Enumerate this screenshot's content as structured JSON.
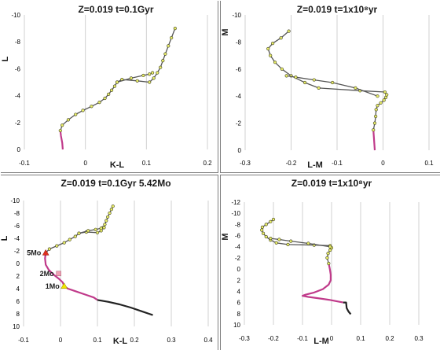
{
  "chart_data": [
    {
      "type": "line",
      "title": "Z=0.019  t=0.1Gyr",
      "xlabel": "K-L",
      "ylabel": "L",
      "xlim": [
        -0.1,
        0.2
      ],
      "ylim": [
        0,
        -10
      ],
      "xticks": [
        "-0.1",
        "0",
        "0.1",
        "0.2"
      ],
      "yticks": [
        "0",
        "-2",
        "-4",
        "-6",
        "-8",
        "-10"
      ],
      "grid": "vertical",
      "series": [
        {
          "color": "#c03a8a",
          "markers": false,
          "points": [
            [
              -0.037,
              0.0
            ],
            [
              -0.038,
              -0.5
            ],
            [
              -0.04,
              -1.0
            ],
            [
              -0.041,
              -1.4
            ]
          ]
        },
        {
          "color": "#555555",
          "markers": true,
          "points": [
            [
              -0.041,
              -1.4
            ],
            [
              -0.038,
              -1.8
            ],
            [
              -0.028,
              -2.2
            ],
            [
              -0.016,
              -2.6
            ],
            [
              -0.004,
              -2.9
            ],
            [
              0.01,
              -3.2
            ],
            [
              0.023,
              -3.5
            ],
            [
              0.032,
              -3.8
            ],
            [
              0.038,
              -4.1
            ],
            [
              0.043,
              -4.4
            ],
            [
              0.048,
              -4.7
            ],
            [
              0.052,
              -5.0
            ],
            [
              0.06,
              -5.2
            ],
            [
              0.085,
              -5.1
            ],
            [
              0.105,
              -5.0
            ],
            [
              0.112,
              -5.3
            ],
            [
              0.118,
              -5.7
            ],
            [
              0.123,
              -6.1
            ],
            [
              0.127,
              -6.6
            ],
            [
              0.131,
              -7.1
            ],
            [
              0.136,
              -7.7
            ],
            [
              0.141,
              -8.3
            ],
            [
              0.147,
              -9.0
            ]
          ]
        },
        {
          "color": "#555555",
          "markers": true,
          "points": [
            [
              0.052,
              -5.0
            ],
            [
              0.075,
              -5.3
            ],
            [
              0.095,
              -5.5
            ],
            [
              0.105,
              -5.6
            ],
            [
              0.11,
              -5.7
            ]
          ]
        }
      ]
    },
    {
      "type": "line",
      "title": "Z=0.019   t=1x10⁸yr",
      "xlabel": "L-M",
      "ylabel": "M",
      "xlim": [
        -0.3,
        0.1
      ],
      "ylim": [
        0,
        -10
      ],
      "xticks": [
        "-0.3",
        "-0.2",
        "-0.1",
        "0",
        "0.1"
      ],
      "yticks": [
        "0",
        "-2",
        "-4",
        "-6",
        "-8",
        "-10"
      ],
      "grid": "vertical",
      "series": [
        {
          "color": "#c03a8a",
          "markers": false,
          "points": [
            [
              -0.018,
              0.0
            ],
            [
              -0.019,
              -0.5
            ],
            [
              -0.02,
              -1.0
            ],
            [
              -0.021,
              -1.5
            ]
          ]
        },
        {
          "color": "#555555",
          "markers": true,
          "points": [
            [
              -0.021,
              -1.5
            ],
            [
              -0.018,
              -2.0
            ],
            [
              -0.016,
              -2.5
            ],
            [
              -0.015,
              -3.0
            ],
            [
              -0.012,
              -3.3
            ],
            [
              -0.005,
              -3.5
            ],
            [
              0.002,
              -3.7
            ],
            [
              0.006,
              -3.9
            ],
            [
              0.008,
              -4.1
            ],
            [
              0.004,
              -4.3
            ],
            [
              -0.05,
              -4.4
            ],
            [
              -0.14,
              -4.6
            ],
            [
              -0.17,
              -5.0
            ],
            [
              -0.2,
              -5.5
            ],
            [
              -0.22,
              -6.0
            ],
            [
              -0.235,
              -6.5
            ],
            [
              -0.245,
              -7.0
            ],
            [
              -0.25,
              -7.5
            ],
            [
              -0.24,
              -7.9
            ],
            [
              -0.222,
              -8.3
            ],
            [
              -0.205,
              -8.8
            ]
          ]
        },
        {
          "color": "#555555",
          "markers": true,
          "points": [
            [
              -0.012,
              -4.0
            ],
            [
              -0.06,
              -4.6
            ],
            [
              -0.11,
              -5.0
            ],
            [
              -0.15,
              -5.2
            ],
            [
              -0.19,
              -5.4
            ],
            [
              -0.21,
              -5.5
            ]
          ]
        }
      ]
    },
    {
      "type": "line",
      "title": "Z=0.019  t=0.1Gyr  5.42Mo",
      "xlabel": "K-L",
      "ylabel": "L",
      "xlim": [
        -0.1,
        0.4
      ],
      "ylim": [
        10,
        -10
      ],
      "xticks": [
        "-0.1",
        "0",
        "0.1",
        "0.2",
        "0.3",
        "0.4"
      ],
      "yticks": [
        "-10",
        "-8",
        "-6",
        "-4",
        "-2",
        "0",
        "2",
        "4",
        "6",
        "8",
        "10"
      ],
      "grid": "vertical",
      "annotations": [
        {
          "text": "5Mo",
          "x": -0.04,
          "y": -1.7,
          "color": "#e0301e"
        },
        {
          "text": "2Mo",
          "x": -0.005,
          "y": 1.6,
          "color": "#f0a0b4"
        },
        {
          "text": "1Mo",
          "x": 0.01,
          "y": 3.6,
          "color": "#f2e600"
        }
      ],
      "series": [
        {
          "color": "#c03a8a",
          "markers": false,
          "points": [
            [
              -0.04,
              -1.7
            ],
            [
              -0.042,
              -0.8
            ],
            [
              -0.04,
              0.2
            ],
            [
              -0.032,
              1.0
            ],
            [
              -0.02,
              1.7
            ],
            [
              -0.005,
              2.4
            ],
            [
              0.006,
              3.0
            ],
            [
              0.01,
              3.6
            ],
            [
              0.02,
              4.0
            ],
            [
              0.04,
              4.4
            ],
            [
              0.07,
              5.0
            ],
            [
              0.09,
              5.4
            ],
            [
              0.1,
              5.8
            ]
          ]
        },
        {
          "color": "#222222",
          "markers": false,
          "points": [
            [
              0.1,
              5.8
            ],
            [
              0.13,
              6.1
            ],
            [
              0.16,
              6.5
            ],
            [
              0.19,
              7.0
            ],
            [
              0.22,
              7.6
            ],
            [
              0.24,
              8.0
            ],
            [
              0.25,
              8.2
            ]
          ]
        },
        {
          "color": "#555555",
          "markers": true,
          "points": [
            [
              -0.04,
              -1.7
            ],
            [
              -0.03,
              -2.3
            ],
            [
              -0.01,
              -2.8
            ],
            [
              0.01,
              -3.3
            ],
            [
              0.025,
              -3.8
            ],
            [
              0.04,
              -4.3
            ],
            [
              0.05,
              -4.8
            ],
            [
              0.07,
              -5.0
            ],
            [
              0.1,
              -4.9
            ],
            [
              0.11,
              -5.2
            ],
            [
              0.115,
              -5.7
            ],
            [
              0.12,
              -6.2
            ],
            [
              0.124,
              -6.8
            ],
            [
              0.128,
              -7.4
            ],
            [
              0.133,
              -8.0
            ],
            [
              0.138,
              -8.6
            ],
            [
              0.142,
              -9.1
            ]
          ]
        },
        {
          "color": "#555555",
          "markers": true,
          "points": [
            [
              0.05,
              -4.8
            ],
            [
              0.075,
              -5.2
            ],
            [
              0.095,
              -5.4
            ],
            [
              0.11,
              -5.6
            ],
            [
              0.118,
              -5.7
            ]
          ]
        }
      ]
    },
    {
      "type": "line",
      "title": "Z=0.019  t=1x10⁸yr",
      "xlabel": "L-M",
      "ylabel": "M",
      "xlim": [
        -0.3,
        0.3
      ],
      "ylim": [
        10,
        -12
      ],
      "xticks": [
        "-0.3",
        "-0.2",
        "-0.1",
        "0",
        "0.1",
        "0.2",
        "0.3"
      ],
      "yticks": [
        "-12",
        "-10",
        "-8",
        "-6",
        "-4",
        "-2",
        "0",
        "2",
        "4",
        "6",
        "8",
        "10"
      ],
      "grid": "vertical",
      "series": [
        {
          "color": "#c03a8a",
          "markers": false,
          "points": [
            [
              -0.01,
              -1.0
            ],
            [
              -0.006,
              0.0
            ],
            [
              -0.003,
              1.0
            ],
            [
              -0.003,
              2.0
            ],
            [
              -0.01,
              2.8
            ],
            [
              -0.03,
              3.6
            ],
            [
              -0.06,
              4.2
            ],
            [
              -0.09,
              4.6
            ],
            [
              -0.1,
              4.8
            ],
            [
              -0.08,
              5.0
            ],
            [
              -0.05,
              5.2
            ],
            [
              -0.01,
              5.5
            ],
            [
              0.02,
              5.8
            ],
            [
              0.04,
              6.0
            ]
          ]
        },
        {
          "color": "#222222",
          "markers": false,
          "points": [
            [
              0.04,
              6.0
            ],
            [
              0.05,
              6.0
            ],
            [
              0.052,
              7.0
            ],
            [
              0.058,
              7.6
            ],
            [
              0.066,
              8.1
            ]
          ]
        },
        {
          "color": "#555555",
          "markers": true,
          "points": [
            [
              -0.01,
              -1.0
            ],
            [
              -0.015,
              -2.0
            ],
            [
              -0.012,
              -2.8
            ],
            [
              -0.005,
              -3.4
            ],
            [
              0.0,
              -3.8
            ],
            [
              -0.005,
              -4.2
            ],
            [
              -0.06,
              -4.3
            ],
            [
              -0.15,
              -4.4
            ],
            [
              -0.19,
              -4.7
            ],
            [
              -0.21,
              -5.2
            ],
            [
              -0.225,
              -5.8
            ],
            [
              -0.235,
              -6.4
            ],
            [
              -0.24,
              -7.0
            ],
            [
              -0.238,
              -7.5
            ],
            [
              -0.225,
              -8.0
            ],
            [
              -0.21,
              -8.5
            ],
            [
              -0.2,
              -8.9
            ]
          ]
        },
        {
          "color": "#555555",
          "markers": true,
          "points": [
            [
              -0.005,
              -4.0
            ],
            [
              -0.08,
              -4.6
            ],
            [
              -0.14,
              -5.0
            ],
            [
              -0.18,
              -5.3
            ],
            [
              -0.21,
              -5.5
            ]
          ]
        }
      ]
    }
  ]
}
